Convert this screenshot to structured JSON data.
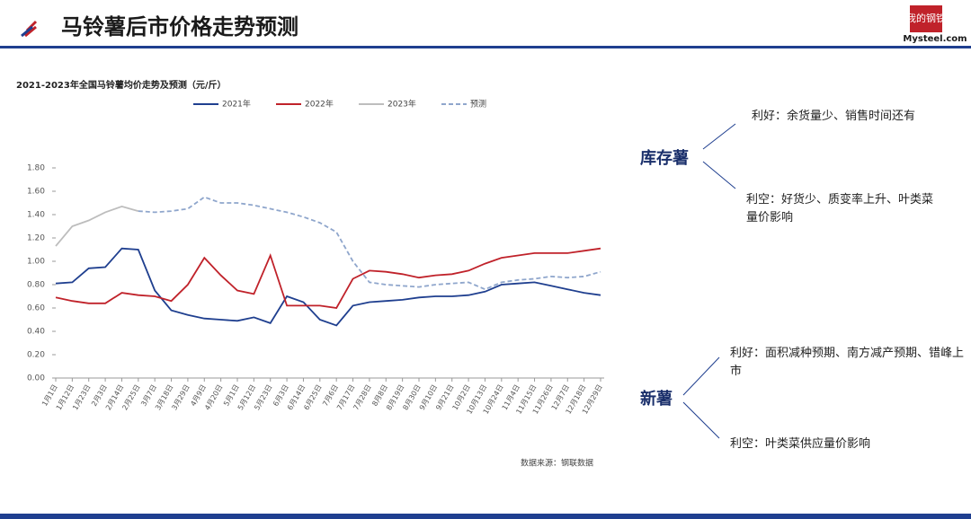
{
  "header": {
    "title": "马铃薯后市价格走势预测",
    "logo_top": "我的钢铁",
    "logo_bottom": "Mysteel.com"
  },
  "chart_data": {
    "type": "line",
    "title": "2021-2023年全国马铃薯均价走势及预测（元/斤）",
    "source": "数据来源：钢联数据",
    "categories": [
      "1月1日",
      "1月12日",
      "1月23日",
      "2月3日",
      "2月14日",
      "2月25日",
      "3月7日",
      "3月18日",
      "3月29日",
      "4月9日",
      "4月20日",
      "5月1日",
      "5月12日",
      "5月23日",
      "6月3日",
      "6月14日",
      "6月25日",
      "7月6日",
      "7月17日",
      "7月28日",
      "8月8日",
      "8月19日",
      "8月30日",
      "9月10日",
      "9月21日",
      "10月2日",
      "10月13日",
      "10月24日",
      "11月4日",
      "11月15日",
      "11月26日",
      "12月7日",
      "12月18日",
      "12月29日"
    ],
    "series": [
      {
        "name": "2021年",
        "color": "#1f3f8f",
        "dash": false,
        "values": [
          0.81,
          0.82,
          0.94,
          0.95,
          1.11,
          1.1,
          0.75,
          0.58,
          0.54,
          0.51,
          0.5,
          0.49,
          0.52,
          0.47,
          0.7,
          0.65,
          0.5,
          0.45,
          0.62,
          0.65,
          0.66,
          0.67,
          0.69,
          0.7,
          0.7,
          0.71,
          0.74,
          0.8,
          0.81,
          0.82,
          0.79,
          0.76,
          0.73,
          0.71
        ]
      },
      {
        "name": "2022年",
        "color": "#c0222a",
        "dash": false,
        "values": [
          0.69,
          0.66,
          0.64,
          0.64,
          0.73,
          0.71,
          0.7,
          0.66,
          0.8,
          1.03,
          0.88,
          0.75,
          0.72,
          1.05,
          0.62,
          0.62,
          0.62,
          0.6,
          0.85,
          0.92,
          0.91,
          0.89,
          0.86,
          0.88,
          0.89,
          0.92,
          0.98,
          1.03,
          1.05,
          1.07,
          1.07,
          1.07,
          1.09,
          1.11
        ]
      },
      {
        "name": "2023年",
        "color": "#bdbdbd",
        "dash": false,
        "values": [
          1.13,
          1.3,
          1.35,
          1.42,
          1.47,
          1.43,
          null,
          null,
          null,
          null,
          null,
          null,
          null,
          null,
          null,
          null,
          null,
          null,
          null,
          null,
          null,
          null,
          null,
          null,
          null,
          null,
          null,
          null,
          null,
          null,
          null,
          null,
          null,
          null
        ]
      },
      {
        "name": "预测",
        "color": "#8fa6cc",
        "dash": true,
        "values": [
          null,
          null,
          null,
          null,
          null,
          1.43,
          1.42,
          1.43,
          1.45,
          1.55,
          1.5,
          1.5,
          1.48,
          1.45,
          1.42,
          1.38,
          1.33,
          1.25,
          1.0,
          0.82,
          0.8,
          0.79,
          0.78,
          0.8,
          0.81,
          0.82,
          0.76,
          0.82,
          0.84,
          0.85,
          0.87,
          0.86,
          0.87,
          0.91
        ]
      }
    ],
    "ylim": [
      0,
      1.8
    ],
    "yticks": [
      {
        "value": 0,
        "label": "0.00"
      },
      {
        "value": 0.2,
        "label": "0.20"
      },
      {
        "value": 0.4,
        "label": "0.40"
      },
      {
        "value": 0.6,
        "label": "0.60"
      },
      {
        "value": 0.8,
        "label": "0.80"
      },
      {
        "value": 1,
        "label": "1.00"
      },
      {
        "value": 1.2,
        "label": "1.20"
      },
      {
        "value": 1.4,
        "label": "1.40"
      },
      {
        "value": 1.6,
        "label": "1.60"
      },
      {
        "value": 1.8,
        "label": "1.80"
      }
    ],
    "grid": false,
    "legend": "top"
  },
  "analysis": {
    "stock": {
      "label": "库存薯",
      "good": "利好：余货量少、销售时间还有",
      "bad": "利空：好货少、质变率上升、叶类菜量价影响"
    },
    "new": {
      "label": "新薯",
      "good": "利好：面积减种预期、南方减产预期、错峰上市",
      "bad": "利空：叶类菜供应量价影响"
    }
  }
}
